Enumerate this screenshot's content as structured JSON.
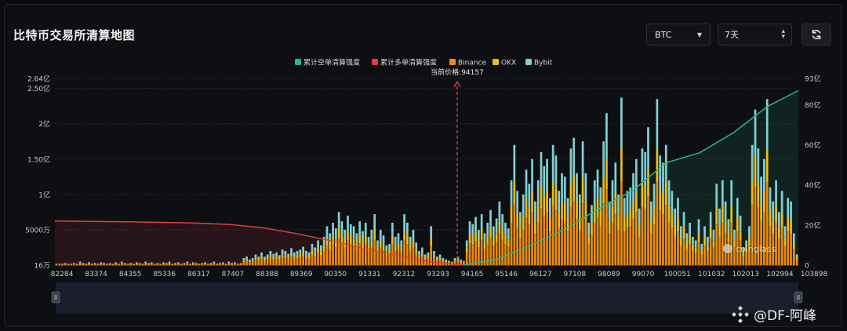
{
  "page": {
    "title": "比特币交易所清算地图"
  },
  "controls": {
    "coin": "BTC",
    "period": "7天",
    "refresh_icon": "refresh-icon"
  },
  "watermark": {
    "text": "@DF-阿峰",
    "brand": "coinglass"
  },
  "colors": {
    "short_cum": "#2bb58f",
    "long_cum": "#e23c44",
    "binance": "#f08a0b",
    "okx": "#f2bd12",
    "bybit": "#7fd0d4"
  },
  "chart_data": {
    "type": "bar",
    "legend": [
      "累计空单清算强度",
      "累计多单清算强度",
      "Binance",
      "OKX",
      "Bybit"
    ],
    "current_price_label": "当前价格:94157",
    "current_price": 94157,
    "x_range": [
      82284,
      103898
    ],
    "x_ticks": [
      "82284",
      "83374",
      "84355",
      "85336",
      "86317",
      "87407",
      "88388",
      "89369",
      "90350",
      "91331",
      "92312",
      "93293",
      "94165",
      "95146",
      "96127",
      "97108",
      "98089",
      "99070",
      "100051",
      "101032",
      "102013",
      "102994",
      "103898"
    ],
    "y_left_ticks": [
      {
        "label": "16万",
        "v": 0.0016
      },
      {
        "label": "5000万",
        "v": 0.5
      },
      {
        "label": "1亿",
        "v": 1
      },
      {
        "label": "1.50亿",
        "v": 1.5
      },
      {
        "label": "2亿",
        "v": 2
      },
      {
        "label": "2.50亿",
        "v": 2.5
      },
      {
        "label": "2.64亿",
        "v": 2.64
      }
    ],
    "y_left_max": 2.64,
    "y_right_ticks": [
      {
        "label": "0",
        "v": 0
      },
      {
        "label": "20亿",
        "v": 20
      },
      {
        "label": "40亿",
        "v": 40
      },
      {
        "label": "60亿",
        "v": 60
      },
      {
        "label": "80亿",
        "v": 80
      },
      {
        "label": "93亿",
        "v": 93
      }
    ],
    "y_right_max": 93,
    "bars_total_yi": [
      0.02,
      0.02,
      0.02,
      0.03,
      0.02,
      0.02,
      0.03,
      0.02,
      0.05,
      0.03,
      0.02,
      0.04,
      0.02,
      0.03,
      0.02,
      0.04,
      0.03,
      0.02,
      0.03,
      0.02,
      0.04,
      0.02,
      0.05,
      0.03,
      0.02,
      0.03,
      0.02,
      0.04,
      0.03,
      0.02,
      0.05,
      0.03,
      0.04,
      0.02,
      0.03,
      0.02,
      0.04,
      0.03,
      0.05,
      0.02,
      0.03,
      0.04,
      0.02,
      0.03,
      0.05,
      0.02,
      0.04,
      0.03,
      0.02,
      0.03,
      0.04,
      0.02,
      0.03,
      0.05,
      0.02,
      0.03,
      0.04,
      0.02,
      0.05,
      0.03,
      0.04,
      0.02,
      0.03,
      0.1,
      0.12,
      0.08,
      0.1,
      0.15,
      0.12,
      0.18,
      0.12,
      0.15,
      0.2,
      0.16,
      0.18,
      0.14,
      0.22,
      0.2,
      0.16,
      0.24,
      0.18,
      0.2,
      0.22,
      0.26,
      0.2,
      0.18,
      0.3,
      0.25,
      0.35,
      0.28,
      0.4,
      0.55,
      0.45,
      0.6,
      0.52,
      0.75,
      0.62,
      0.5,
      0.7,
      0.58,
      0.55,
      0.45,
      0.62,
      0.48,
      0.6,
      0.4,
      0.5,
      0.72,
      0.35,
      0.5,
      0.42,
      0.28,
      0.3,
      0.6,
      0.4,
      0.45,
      0.35,
      0.72,
      0.6,
      0.4,
      0.5,
      0.32,
      0.2,
      0.25,
      0.15,
      0.18,
      0.55,
      0.2,
      0.12,
      0.15,
      0.1,
      0.08,
      0.06,
      0.05,
      0.1,
      0.12,
      0.08,
      0.06,
      0.35,
      0.62,
      0.58,
      0.68,
      0.5,
      0.72,
      0.45,
      0.6,
      0.78,
      0.55,
      0.66,
      0.9,
      0.72,
      0.6,
      0.52,
      1.2,
      1.7,
      1.05,
      0.75,
      1.0,
      1.35,
      1.15,
      1.5,
      0.9,
      1.2,
      1.6,
      1.4,
      1.5,
      0.95,
      1.7,
      1.55,
      1.05,
      1.3,
      1.25,
      0.95,
      1.65,
      1.8,
      1.3,
      1.0,
      1.75,
      1.3,
      0.6,
      0.85,
      1.2,
      1.35,
      1.1,
      1.75,
      2.15,
      0.9,
      1.2,
      1.45,
      1.0,
      2.37,
      0.95,
      1.05,
      1.1,
      1.3,
      1.5,
      0.8,
      1.65,
      1.6,
      1.95,
      0.9,
      1.15,
      2.35,
      1.55,
      1.45,
      1.7,
      1.2,
      1.05,
      0.8,
      0.95,
      0.55,
      0.75,
      0.45,
      0.6,
      0.4,
      0.35,
      0.65,
      0.3,
      0.55,
      0.4,
      0.75,
      0.5,
      1.15,
      0.8,
      1.2,
      0.9,
      0.65,
      1.2,
      0.5,
      0.95,
      0.7,
      0.25,
      0.35,
      0.55,
      1.7,
      2.2,
      1.65,
      1.25,
      1.5,
      2.35,
      1.1,
      0.9,
      1.2,
      0.75,
      1.05,
      0.55,
      0.95,
      0.9,
      0.45,
      0.15
    ],
    "bar_mix_binance_okx_bybit": [
      0.5,
      0.2,
      0.3
    ],
    "long_cum_yi": [
      [
        82284,
        22.0
      ],
      [
        84355,
        21.6
      ],
      [
        86317,
        21.0
      ],
      [
        87407,
        20.2
      ],
      [
        88388,
        18.5
      ],
      [
        89369,
        15.5
      ],
      [
        90350,
        12.0
      ],
      [
        91331,
        8.0
      ],
      [
        92312,
        4.5
      ],
      [
        93293,
        1.5
      ],
      [
        94165,
        0
      ]
    ],
    "short_cum_yi": [
      [
        94165,
        0
      ],
      [
        95146,
        3
      ],
      [
        96127,
        10
      ],
      [
        97108,
        18
      ],
      [
        98089,
        28
      ],
      [
        99070,
        37
      ],
      [
        100051,
        51
      ],
      [
        101032,
        56
      ],
      [
        102013,
        66
      ],
      [
        102994,
        79
      ],
      [
        103898,
        87
      ]
    ]
  }
}
